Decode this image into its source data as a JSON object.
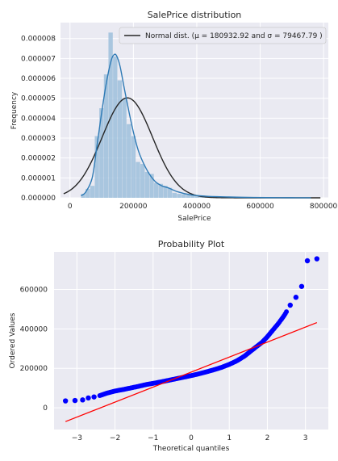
{
  "theme": {
    "panel_bg": "#eaeaf2",
    "grid": "#ffffff",
    "hist_color": "#9dbfdc",
    "kde_color": "#2e7ab5",
    "normal_color": "#262626",
    "pp_points": "#0000ff",
    "pp_line": "#ff0000"
  },
  "chart_data": [
    {
      "type": "bar",
      "title": "SalePrice distribution",
      "xlabel": "SalePrice",
      "ylabel": "Frequency",
      "xlim": [
        -30000,
        815000
      ],
      "ylim": [
        0,
        8.8e-06
      ],
      "x_ticks": [
        0,
        200000,
        400000,
        600000,
        800000
      ],
      "x_tick_labels": [
        "0",
        "200000",
        "400000",
        "600000",
        "800000"
      ],
      "y_ticks": [
        0,
        1e-06,
        2e-06,
        3e-06,
        4e-06,
        5e-06,
        6e-06,
        7e-06,
        8e-06
      ],
      "y_tick_labels": [
        "0.000000",
        "0.000001",
        "0.000002",
        "0.000003",
        "0.000004",
        "0.000005",
        "0.000006",
        "0.000007",
        "0.000008"
      ],
      "bin_edges": [
        34900,
        49300,
        63700,
        78100,
        92500,
        106900,
        121300,
        135700,
        150100,
        164500,
        178900,
        193300,
        207700,
        222100,
        236500,
        250900,
        265300,
        279700,
        294100,
        308500,
        322900,
        337300,
        351700,
        366100,
        380500,
        394900,
        409300,
        423700,
        438100,
        452500,
        466900,
        481300,
        495700,
        510100,
        524500,
        538900,
        553300,
        567700,
        582100,
        596500,
        610900,
        625300,
        639700,
        654100,
        668500,
        682900,
        697300,
        711700,
        726100,
        740500,
        754900
      ],
      "bin_heights": [
        2e-07,
        4.5e-07,
        6e-07,
        3.1e-06,
        4.5e-06,
        6.2e-06,
        8.3e-06,
        7.1e-06,
        5.9e-06,
        5e-06,
        3.7e-06,
        3.1e-06,
        1.8e-06,
        1.7e-06,
        1.3e-06,
        1.2e-06,
        7.5e-07,
        7e-07,
        6e-07,
        5e-07,
        2.5e-07,
        2e-07,
        1.8e-07,
        1.5e-07,
        1.2e-07,
        9e-08,
        7e-08,
        6e-08,
        5e-08,
        4e-08,
        3e-08,
        3e-08,
        3e-08,
        2e-08,
        2e-08,
        2e-08,
        1e-08,
        1e-08,
        1e-08,
        1e-08,
        1e-08,
        1e-08,
        0,
        0,
        0,
        0,
        0,
        0,
        0,
        1e-08
      ],
      "kde": {
        "name": "",
        "x": [
          34900,
          50000,
          70000,
          85000,
          100000,
          115000,
          130000,
          140000,
          148000,
          158000,
          170000,
          185000,
          200000,
          215000,
          230000,
          250000,
          270000,
          290000,
          310000,
          340000,
          380000,
          430000,
          500000,
          560000,
          620000,
          700000,
          760000
        ],
        "y": [
          1e-07,
          3e-07,
          1e-06,
          2.6e-06,
          4.3e-06,
          5.8e-06,
          6.9e-06,
          7.2e-06,
          7.1e-06,
          6.6e-06,
          5.6e-06,
          4.4e-06,
          3.3e-06,
          2.4e-06,
          1.8e-06,
          1.2e-06,
          8e-07,
          6e-07,
          5e-07,
          3e-07,
          1.5e-07,
          8e-08,
          4e-08,
          2e-08,
          1e-08,
          5e-09,
          3e-09
        ]
      },
      "normal_fit": {
        "name": "Normal dist. ($\\mu=$ 180932.92 and $\\sigma=$ 79467.79 )",
        "mu": 180932.92,
        "sigma": 79467.79,
        "x_range": [
          -20000,
          790000
        ]
      },
      "legend": {
        "placement": "top-right",
        "label": "Normal dist. (μ =  180932.92 and σ =  79467.79 )"
      }
    },
    {
      "type": "scatter",
      "title": "Probability Plot",
      "xlabel": "Theoretical quantiles",
      "ylabel": "Ordered Values",
      "xlim": [
        -3.6,
        3.6
      ],
      "ylim": [
        -110000,
        790000
      ],
      "x_ticks": [
        -3,
        -2,
        -1,
        0,
        1,
        2,
        3
      ],
      "x_tick_labels": [
        "−3",
        "−2",
        "−1",
        "0",
        "1",
        "2",
        "3"
      ],
      "y_ticks": [
        0,
        200000,
        400000,
        600000
      ],
      "y_tick_labels": [
        "0",
        "200000",
        "400000",
        "600000"
      ],
      "points_quantiles": {
        "q": [
          -3.3,
          -3.05,
          -2.85,
          -2.7,
          -2.55,
          -2.4,
          -2.2,
          -2.0,
          -1.8,
          -1.6,
          -1.4,
          -1.2,
          -1.0,
          -0.8,
          -0.6,
          -0.4,
          -0.2,
          0.0,
          0.2,
          0.4,
          0.6,
          0.8,
          1.0,
          1.2,
          1.4,
          1.55,
          1.7,
          1.85,
          2.0,
          2.15,
          2.3,
          2.45,
          2.6,
          2.75,
          2.9,
          3.05,
          3.3
        ],
        "v": [
          35000,
          37000,
          40000,
          50000,
          55000,
          62000,
          75000,
          85000,
          92000,
          100000,
          108000,
          117000,
          124000,
          131000,
          139000,
          147000,
          155000,
          163000,
          172000,
          182000,
          193000,
          205000,
          220000,
          238000,
          262000,
          285000,
          308000,
          330000,
          360000,
          395000,
          430000,
          470000,
          520000,
          560000,
          615000,
          745000,
          755000
        ]
      },
      "fit_line": {
        "slope": 76000,
        "intercept": 180932.92,
        "x_range": [
          -3.3,
          3.3
        ]
      }
    }
  ]
}
